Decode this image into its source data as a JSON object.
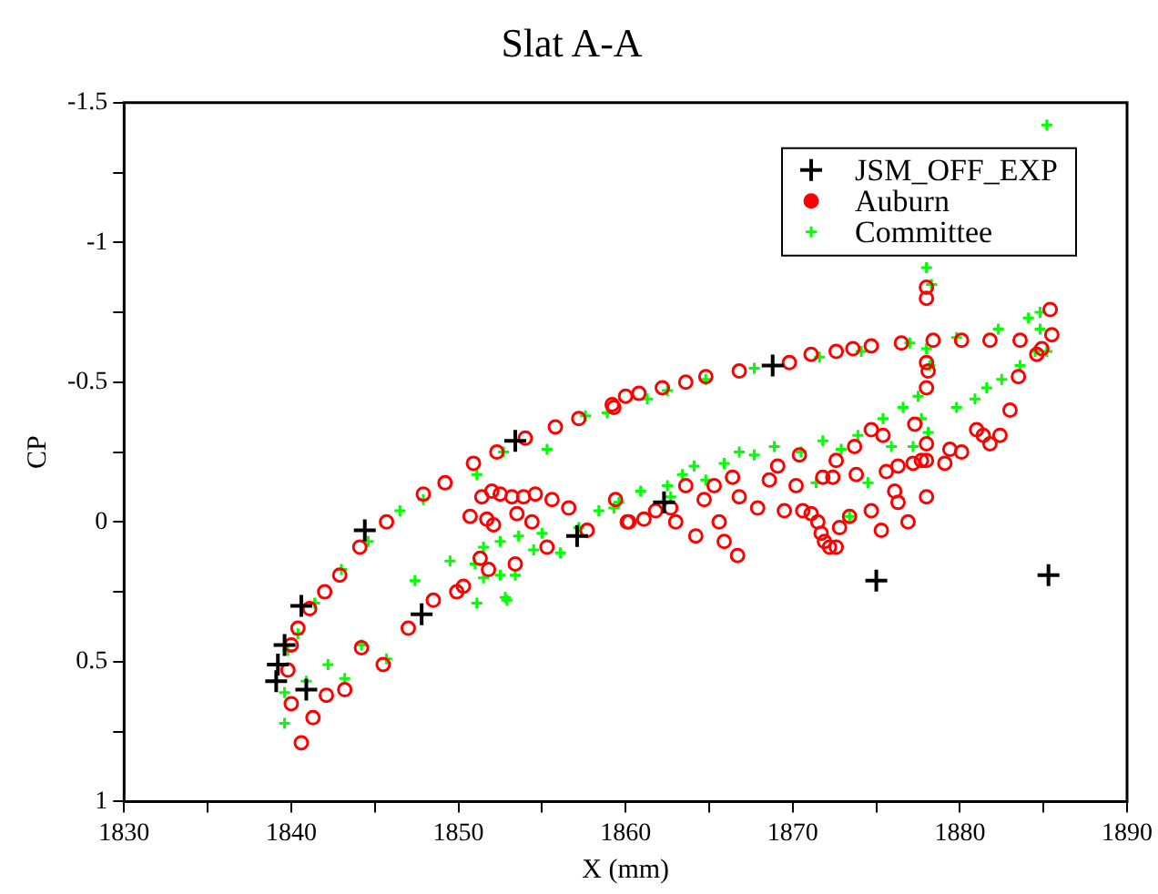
{
  "chart_data": {
    "type": "scatter",
    "title": "Slat A-A",
    "xlabel": "X (mm)",
    "ylabel": "CP",
    "xlim": [
      1830,
      1890
    ],
    "ylim": [
      1,
      -1.5
    ],
    "xticks": [
      1830,
      {
        "value": 1835,
        "label": null
      },
      1840,
      {
        "value": 1845,
        "label": null
      },
      1850,
      {
        "value": 1855,
        "label": null
      },
      1860,
      {
        "value": 1865,
        "label": null
      },
      1870,
      {
        "value": 1875,
        "label": null
      },
      1880,
      {
        "value": 1885,
        "label": null
      },
      1890
    ],
    "yticks": [
      -1.5,
      {
        "value": -1.25,
        "label": null
      },
      -1,
      {
        "value": -0.75,
        "label": null
      },
      -0.5,
      {
        "value": -0.25,
        "label": null
      },
      0,
      {
        "value": 0.25,
        "label": null
      },
      0.5,
      {
        "value": 0.75,
        "label": null
      },
      1
    ],
    "grid": false,
    "legend": "top right",
    "series": [
      {
        "name": "JSM_OFF_EXP",
        "color": "#000000",
        "marker": "cross",
        "x": [
          1853.4,
          1844.4,
          1847.8,
          1840.6,
          1839.6,
          1839.2,
          1839.1,
          1840.9,
          1857.1,
          1868.8,
          1862.3,
          1875.0,
          1885.3
        ],
        "values": [
          -0.29,
          0.03,
          0.33,
          0.3,
          0.44,
          0.51,
          0.57,
          0.6,
          0.05,
          -0.56,
          -0.07,
          0.21,
          0.19
        ]
      },
      {
        "name": "Auburn",
        "color": "#ff0000",
        "marker": "circle",
        "x": [
          1840,
          1839.8,
          1840,
          1840.4,
          1841.1,
          1842,
          1842.9,
          1844.1,
          1845.7,
          1847.9,
          1849.2,
          1850.9,
          1852.3,
          1854,
          1855.8,
          1857.2,
          1859.2,
          1859.3,
          1860,
          1860.8,
          1862.2,
          1863.6,
          1864.8,
          1866.8,
          1869.8,
          1871.1,
          1872.6,
          1873.6,
          1874.7,
          1876.5,
          1878.4,
          1880.1,
          1881.8,
          1883.6,
          1885.4,
          1840.6,
          1841.3,
          1842.1,
          1843.2,
          1844.2,
          1845.5,
          1847,
          1848.5,
          1849.9,
          1850.3,
          1850.7,
          1851.4,
          1852,
          1852.5,
          1853.2,
          1853.9,
          1854.6,
          1855.6,
          1856.6,
          1851.7,
          1852.1,
          1853.5,
          1854.4,
          1851.8,
          1851.3,
          1853.4,
          1855.3,
          1857.7,
          1859.4,
          1860.1,
          1860.2,
          1861.1,
          1861.8,
          1862.7,
          1863,
          1863.6,
          1864.2,
          1864.7,
          1865.3,
          1865.6,
          1865.9,
          1866.4,
          1866.7,
          1866.8,
          1867.9,
          1868.6,
          1869.1,
          1869.5,
          1870.2,
          1870.4,
          1870.6,
          1871.1,
          1871.5,
          1871.7,
          1871.9,
          1872.2,
          1872.6,
          1871.8,
          1872.4,
          1872.6,
          1872.8,
          1873.4,
          1873.7,
          1873.8,
          1874.7,
          1874.7,
          1875.3,
          1875.4,
          1875.6,
          1876.1,
          1876.3,
          1876.3,
          1876.9,
          1877.3,
          1877.2,
          1877.7,
          1878,
          1878,
          1878,
          1878,
          1878.1,
          1878,
          1878,
          1878,
          1879.1,
          1879.4,
          1880.1,
          1881,
          1881.4,
          1881.8,
          1882.4,
          1883,
          1883.5,
          1884.6,
          1884.9,
          1885.5
        ],
        "values": [
          0.65,
          0.53,
          0.44,
          0.38,
          0.31,
          0.25,
          0.19,
          0.09,
          0,
          -0.1,
          -0.14,
          -0.21,
          -0.25,
          -0.3,
          -0.34,
          -0.37,
          -0.42,
          -0.41,
          -0.45,
          -0.46,
          -0.48,
          -0.5,
          -0.52,
          -0.54,
          -0.57,
          -0.6,
          -0.61,
          -0.62,
          -0.63,
          -0.64,
          -0.65,
          -0.65,
          -0.65,
          -0.65,
          -0.76,
          0.79,
          0.7,
          0.62,
          0.6,
          0.45,
          0.51,
          0.38,
          0.28,
          0.25,
          0.23,
          -0.02,
          -0.09,
          -0.11,
          -0.1,
          -0.09,
          -0.09,
          -0.1,
          -0.08,
          -0.05,
          -0.01,
          0.01,
          -0.03,
          0,
          0.17,
          0.13,
          0.15,
          0.09,
          0.03,
          -0.08,
          0,
          0,
          -0.01,
          -0.04,
          -0.05,
          0,
          -0.13,
          0.05,
          -0.08,
          -0.13,
          0,
          0.07,
          -0.16,
          0.12,
          -0.09,
          -0.05,
          -0.15,
          -0.2,
          -0.04,
          -0.13,
          -0.24,
          -0.04,
          -0.03,
          0,
          0.04,
          0.07,
          0.09,
          0.09,
          -0.16,
          -0.16,
          -0.22,
          0.02,
          -0.02,
          -0.27,
          -0.17,
          -0.33,
          -0.04,
          0.03,
          -0.31,
          -0.18,
          -0.11,
          -0.07,
          -0.2,
          0,
          -0.35,
          -0.21,
          -0.22,
          -0.22,
          -0.28,
          -0.09,
          -0.48,
          -0.54,
          -0.57,
          -0.8,
          -0.84,
          -0.21,
          -0.26,
          -0.25,
          -0.33,
          -0.31,
          -0.28,
          -0.31,
          -0.4,
          -0.52,
          -0.6,
          -0.62,
          -0.67
        ]
      },
      {
        "name": "Committee",
        "color": "#00ff00",
        "marker": "cross",
        "x": [
          1839.6,
          1839.6,
          1839.8,
          1840.4,
          1841.4,
          1843,
          1844.6,
          1846.5,
          1847.9,
          1851.1,
          1852.7,
          1855.3,
          1857.6,
          1858.9,
          1840.9,
          1842.2,
          1843.2,
          1844.2,
          1845.7,
          1847.4,
          1849.5,
          1851.1,
          1852.8,
          1852.9,
          1851,
          1851.5,
          1852.5,
          1853.4,
          1851.5,
          1852.5,
          1853.6,
          1854.5,
          1855,
          1856.1,
          1857.2,
          1858.4,
          1859.6,
          1859.3,
          1860.9,
          1862.5,
          1862.7,
          1863.4,
          1864.1,
          1864.8,
          1865.9,
          1866.8,
          1867.7,
          1868.9,
          1870.5,
          1871.8,
          1872.9,
          1873.9,
          1874.5,
          1875.4,
          1875.9,
          1876.6,
          1877.2,
          1877.5,
          1877.7,
          1878.1,
          1878.2,
          1878,
          1878.3,
          1878,
          1879.8,
          1880.9,
          1881.6,
          1882.5,
          1883.6,
          1884.5,
          1885.2,
          1884.8,
          1884.1,
          1885.2,
          1882.3,
          1879.8,
          1877,
          1874.1,
          1871.6,
          1867.7,
          1864.8,
          1862.5,
          1861.3,
          1871.4,
          1873.4,
          1884.8
        ],
        "values": [
          0.72,
          0.61,
          0.46,
          0.4,
          0.29,
          0.17,
          0.07,
          -0.04,
          -0.08,
          -0.17,
          -0.25,
          -0.26,
          -0.38,
          -0.39,
          0.57,
          0.51,
          0.56,
          0.44,
          0.49,
          0.21,
          0.14,
          0.29,
          0.27,
          0.28,
          0.15,
          0.2,
          0.19,
          0.19,
          0.09,
          0.07,
          0.05,
          0.1,
          0.04,
          0.11,
          0.02,
          -0.04,
          -0.07,
          -0.05,
          -0.11,
          -0.13,
          -0.09,
          -0.17,
          -0.2,
          -0.15,
          -0.21,
          -0.25,
          -0.24,
          -0.27,
          -0.25,
          -0.29,
          -0.26,
          -0.31,
          -0.14,
          -0.37,
          -0.27,
          -0.41,
          -0.27,
          -0.45,
          -0.37,
          -0.32,
          -0.56,
          -0.62,
          -0.85,
          -0.91,
          -0.41,
          -0.44,
          -0.48,
          -0.51,
          -0.56,
          -0.61,
          -0.61,
          -0.69,
          -0.73,
          -1.42,
          -0.69,
          -0.66,
          -0.64,
          -0.61,
          -0.59,
          -0.55,
          -0.51,
          -0.47,
          -0.44,
          -0.14,
          -0.02,
          -0.75
        ]
      }
    ]
  }
}
